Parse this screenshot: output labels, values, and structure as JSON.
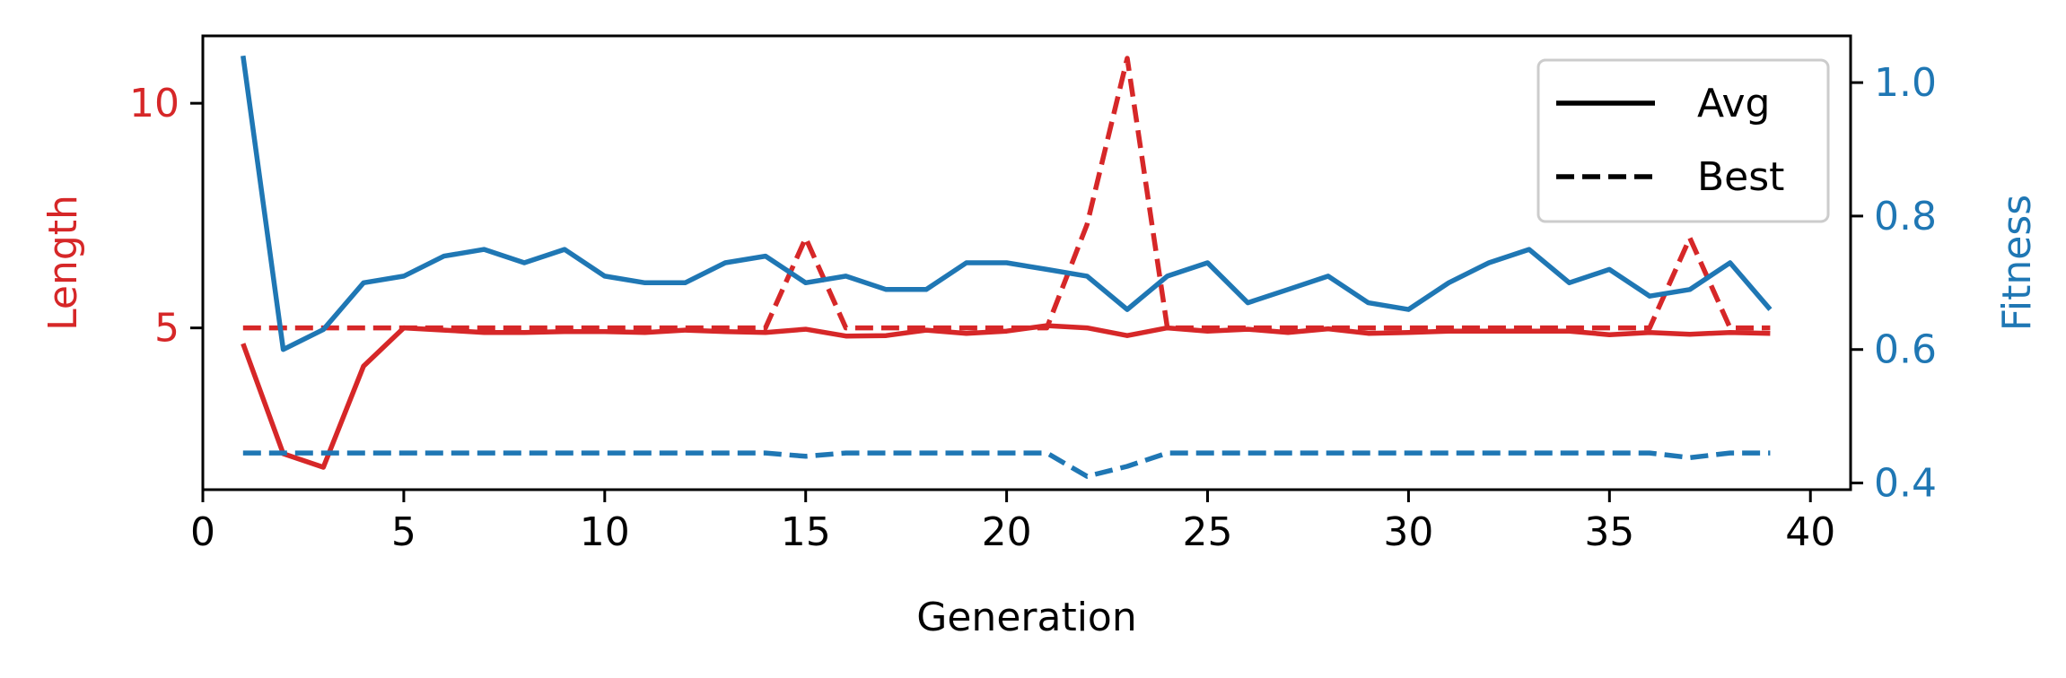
{
  "chart_data": {
    "type": "line",
    "xlabel": "Generation",
    "ylabel_left": "Length",
    "ylabel_right": "Fitness",
    "xlim": [
      0,
      41
    ],
    "ylim_left": [
      1.4,
      11.5
    ],
    "ylim_right": [
      0.39,
      1.07
    ],
    "xticks": [
      0,
      5,
      10,
      15,
      20,
      25,
      30,
      35,
      40
    ],
    "yticks_left": [
      5,
      10
    ],
    "yticks_right": [
      0.4,
      0.6,
      0.8,
      1.0
    ],
    "grid": false,
    "legend_position": "top-right",
    "colors": {
      "length": "#d62728",
      "fitness": "#1f77b4",
      "axis": "#000000"
    },
    "legend": [
      {
        "label": "Avg",
        "style": "solid"
      },
      {
        "label": "Best",
        "style": "dashed"
      }
    ],
    "x": [
      1,
      2,
      3,
      4,
      5,
      6,
      7,
      8,
      9,
      10,
      11,
      12,
      13,
      14,
      15,
      16,
      17,
      18,
      19,
      20,
      21,
      22,
      23,
      24,
      25,
      26,
      27,
      28,
      29,
      30,
      31,
      32,
      33,
      34,
      35,
      36,
      37,
      38,
      39
    ],
    "series": [
      {
        "axis": "left",
        "style": "solid",
        "color": "#d62728",
        "values": [
          4.65,
          2.2,
          1.9,
          4.15,
          5.0,
          4.95,
          4.9,
          4.9,
          4.92,
          4.92,
          4.9,
          4.95,
          4.92,
          4.9,
          4.97,
          4.82,
          4.83,
          4.95,
          4.88,
          4.93,
          5.05,
          5.0,
          4.83,
          5.0,
          4.93,
          4.97,
          4.9,
          4.98,
          4.88,
          4.9,
          4.93,
          4.93,
          4.93,
          4.93,
          4.85,
          4.9,
          4.86,
          4.9,
          4.88
        ]
      },
      {
        "axis": "left",
        "style": "dashed",
        "color": "#d62728",
        "values": [
          5,
          5,
          5,
          5,
          5,
          5,
          5,
          5,
          5,
          5,
          5,
          5,
          5,
          5,
          7,
          5,
          5,
          5,
          5,
          5,
          5,
          7.3,
          11,
          5,
          5,
          5,
          5,
          5,
          5,
          5,
          5,
          5,
          5,
          5,
          5,
          5,
          7,
          5,
          5
        ]
      },
      {
        "axis": "right",
        "style": "solid",
        "color": "#1f77b4",
        "values": [
          1.04,
          0.6,
          0.63,
          0.7,
          0.71,
          0.74,
          0.75,
          0.73,
          0.75,
          0.71,
          0.7,
          0.7,
          0.73,
          0.74,
          0.7,
          0.71,
          0.69,
          0.69,
          0.73,
          0.73,
          0.72,
          0.71,
          0.66,
          0.71,
          0.73,
          0.67,
          0.69,
          0.71,
          0.67,
          0.66,
          0.7,
          0.73,
          0.75,
          0.7,
          0.72,
          0.68,
          0.69,
          0.73,
          0.66
        ]
      },
      {
        "axis": "right",
        "style": "dashed",
        "color": "#1f77b4",
        "values": [
          0.445,
          0.445,
          0.445,
          0.445,
          0.445,
          0.445,
          0.445,
          0.445,
          0.445,
          0.445,
          0.445,
          0.445,
          0.445,
          0.445,
          0.44,
          0.445,
          0.445,
          0.445,
          0.445,
          0.445,
          0.445,
          0.41,
          0.425,
          0.445,
          0.445,
          0.445,
          0.445,
          0.445,
          0.445,
          0.445,
          0.445,
          0.445,
          0.445,
          0.445,
          0.445,
          0.445,
          0.438,
          0.445,
          0.445
        ]
      }
    ]
  }
}
